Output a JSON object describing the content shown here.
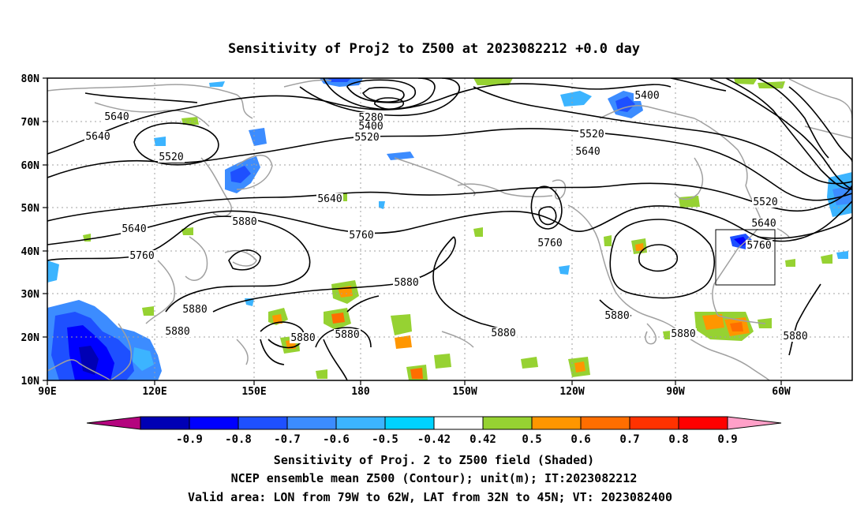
{
  "title": "Sensitivity of Proj2 to Z500 at 2023082212 +0.0 day",
  "axes": {
    "lat_labels": [
      "80N",
      "70N",
      "60N",
      "50N",
      "40N",
      "30N",
      "20N",
      "10N"
    ],
    "lon_labels": [
      "90E",
      "120E",
      "150E",
      "180",
      "150W",
      "120W",
      "90W",
      "60W"
    ]
  },
  "contour_labels": [
    {
      "text": "5640"
    },
    {
      "text": "5640"
    },
    {
      "text": "5520"
    },
    {
      "text": "5280"
    },
    {
      "text": "5400"
    },
    {
      "text": "5520"
    },
    {
      "text": "5400"
    },
    {
      "text": "5520"
    },
    {
      "text": "5640"
    },
    {
      "text": "5640"
    },
    {
      "text": "5880"
    },
    {
      "text": "5640"
    },
    {
      "text": "5760"
    },
    {
      "text": "5760"
    },
    {
      "text": "5760"
    },
    {
      "text": "5520"
    },
    {
      "text": "5640"
    },
    {
      "text": "5760"
    },
    {
      "text": "5880"
    },
    {
      "text": "5880"
    },
    {
      "text": "5880"
    },
    {
      "text": "5880"
    },
    {
      "text": "5880"
    },
    {
      "text": "5880"
    },
    {
      "text": "5880"
    },
    {
      "text": "5880"
    },
    {
      "text": "5880"
    }
  ],
  "colorbar": {
    "labels": [
      "-0.9",
      "-0.8",
      "-0.7",
      "-0.6",
      "-0.5",
      "-0.42",
      "0.42",
      "0.5",
      "0.6",
      "0.7",
      "0.8",
      "0.9"
    ],
    "colors": [
      "#b4047e",
      "#0000b4",
      "#0000ff",
      "#1e50ff",
      "#3c8cff",
      "#3cb4ff",
      "#00d2ff",
      "#ffffff",
      "#96d232",
      "#ff9600",
      "#ff6e00",
      "#ff3200",
      "#ff0000",
      "#ffa0c8"
    ]
  },
  "footer": {
    "line1": "Sensitivity of Proj. 2 to Z500 field (Shaded)",
    "line2": "NCEP ensemble mean Z500 (Contour); unit(m); IT:2023082212",
    "line3": "Valid area: LON from 79W to 62W, LAT from 32N to 45N; VT: 2023082400"
  },
  "colors": {
    "contour": "#000000",
    "coastline": "#a0a0a0",
    "grid": "#a0a0a0"
  }
}
